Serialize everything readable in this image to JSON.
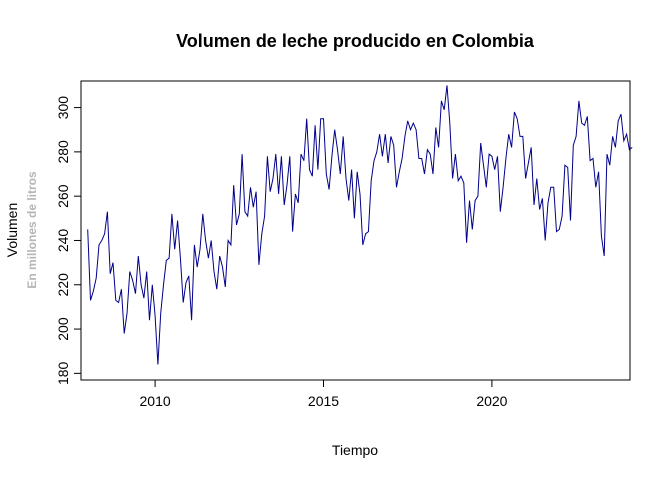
{
  "chart_data": {
    "type": "line",
    "title": "Volumen de leche producido en Colombia",
    "xlabel": "Tiempo",
    "ylabel": "Volumen",
    "ylabel_sub": "En millones de litros",
    "xlim": [
      2007.8,
      2024.1
    ],
    "ylim": [
      177.0,
      312.0
    ],
    "xticks": [
      2010,
      2015,
      2020
    ],
    "yticks": [
      180,
      200,
      220,
      240,
      260,
      280,
      300
    ],
    "grid": false,
    "legend": "none",
    "colors": {
      "line": "#00008b",
      "axis": "#000000",
      "sublabel": "#b5b5b5"
    },
    "series": [
      {
        "frequency": "monthly",
        "start": "2008-01",
        "values": [
          245,
          213,
          217,
          223,
          238,
          240,
          243,
          253,
          225,
          230,
          213,
          212,
          218,
          198,
          207,
          226,
          222,
          216,
          233,
          220,
          214,
          226,
          204,
          220,
          206,
          184,
          207,
          220,
          231,
          232,
          252,
          236,
          249,
          232,
          212,
          221,
          224,
          204,
          238,
          228,
          236,
          252,
          240,
          232,
          240,
          226,
          218,
          233,
          228,
          219,
          240,
          238,
          265,
          247,
          252,
          279,
          253,
          251,
          264,
          255,
          262,
          229,
          243,
          251,
          278,
          262,
          268,
          279,
          261,
          278,
          256,
          265,
          278,
          244,
          261,
          257,
          279,
          276,
          295,
          272,
          269,
          292,
          272,
          295,
          295,
          270,
          263,
          278,
          290,
          281,
          270,
          287,
          268,
          258,
          272,
          250,
          271,
          261,
          238,
          243,
          244,
          267,
          276,
          280,
          288,
          278,
          288,
          275,
          287,
          283,
          264,
          271,
          277,
          287,
          294,
          290,
          293,
          290,
          277,
          277,
          270,
          281,
          279,
          270,
          291,
          282,
          303,
          299,
          310,
          293,
          268,
          279,
          267,
          269,
          266,
          239,
          258,
          245,
          258,
          260,
          284,
          274,
          264,
          279,
          278,
          272,
          278,
          253,
          264,
          277,
          288,
          282,
          298,
          295,
          287,
          287,
          268,
          275,
          282,
          256,
          268,
          254,
          259,
          240,
          257,
          264,
          264,
          244,
          245,
          251,
          274,
          273,
          249,
          283,
          287,
          303,
          293,
          292,
          296,
          276,
          277,
          264,
          271,
          242,
          233,
          279,
          274,
          287,
          282,
          294,
          297,
          285,
          288,
          281,
          282
        ]
      }
    ]
  }
}
